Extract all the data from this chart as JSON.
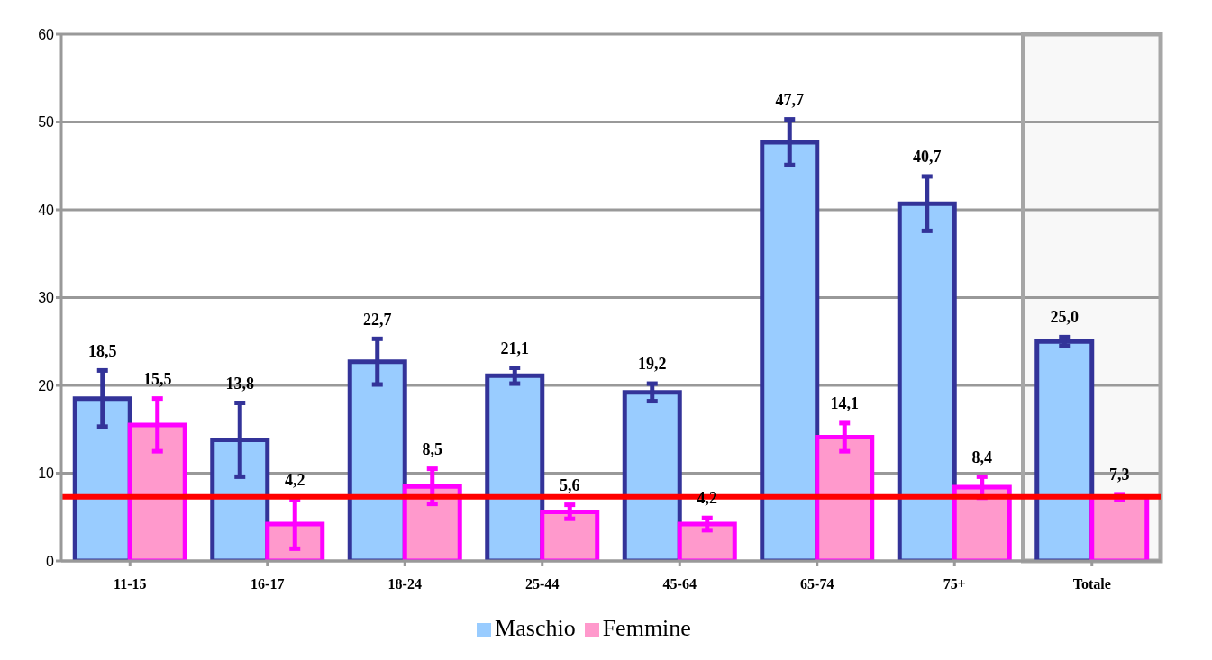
{
  "chart_data": {
    "type": "bar",
    "categories": [
      "11-15",
      "16-17",
      "18-24",
      "25-44",
      "45-64",
      "65-74",
      "75+",
      "Totale"
    ],
    "series": [
      {
        "name": "Maschio",
        "color": "#99ccff",
        "values": [
          18.5,
          13.8,
          22.7,
          21.1,
          19.2,
          47.7,
          40.7,
          25.0
        ],
        "errors": [
          3.2,
          4.2,
          2.6,
          0.9,
          1.0,
          2.6,
          3.1,
          0.5
        ],
        "value_labels": [
          "18,5",
          "13,8",
          "22,7",
          "21,1",
          "19,2",
          "47,7",
          "40,7",
          "25,0"
        ]
      },
      {
        "name": "Femmine",
        "color": "#ff99cc",
        "values": [
          15.5,
          4.2,
          8.5,
          5.6,
          4.2,
          14.1,
          8.4,
          7.3
        ],
        "errors": [
          3.0,
          2.8,
          2.0,
          0.8,
          0.7,
          1.6,
          1.2,
          0.3
        ],
        "value_labels": [
          "15,5",
          "4,2",
          "8,5",
          "5,6",
          "4,2",
          "14,1",
          "8,4",
          "7,3"
        ]
      }
    ],
    "ylim": [
      0,
      60
    ],
    "yticks": [
      0,
      10,
      20,
      30,
      40,
      50,
      60
    ],
    "grid": "y",
    "legend": "bottom",
    "ref_lines": [
      {
        "axis": "y",
        "value": 7.3,
        "color": "#ff0000"
      }
    ],
    "bands": [
      {
        "axis": "x",
        "from": "Totale",
        "to": "Totale",
        "color": "#a6a6a6"
      }
    ]
  }
}
